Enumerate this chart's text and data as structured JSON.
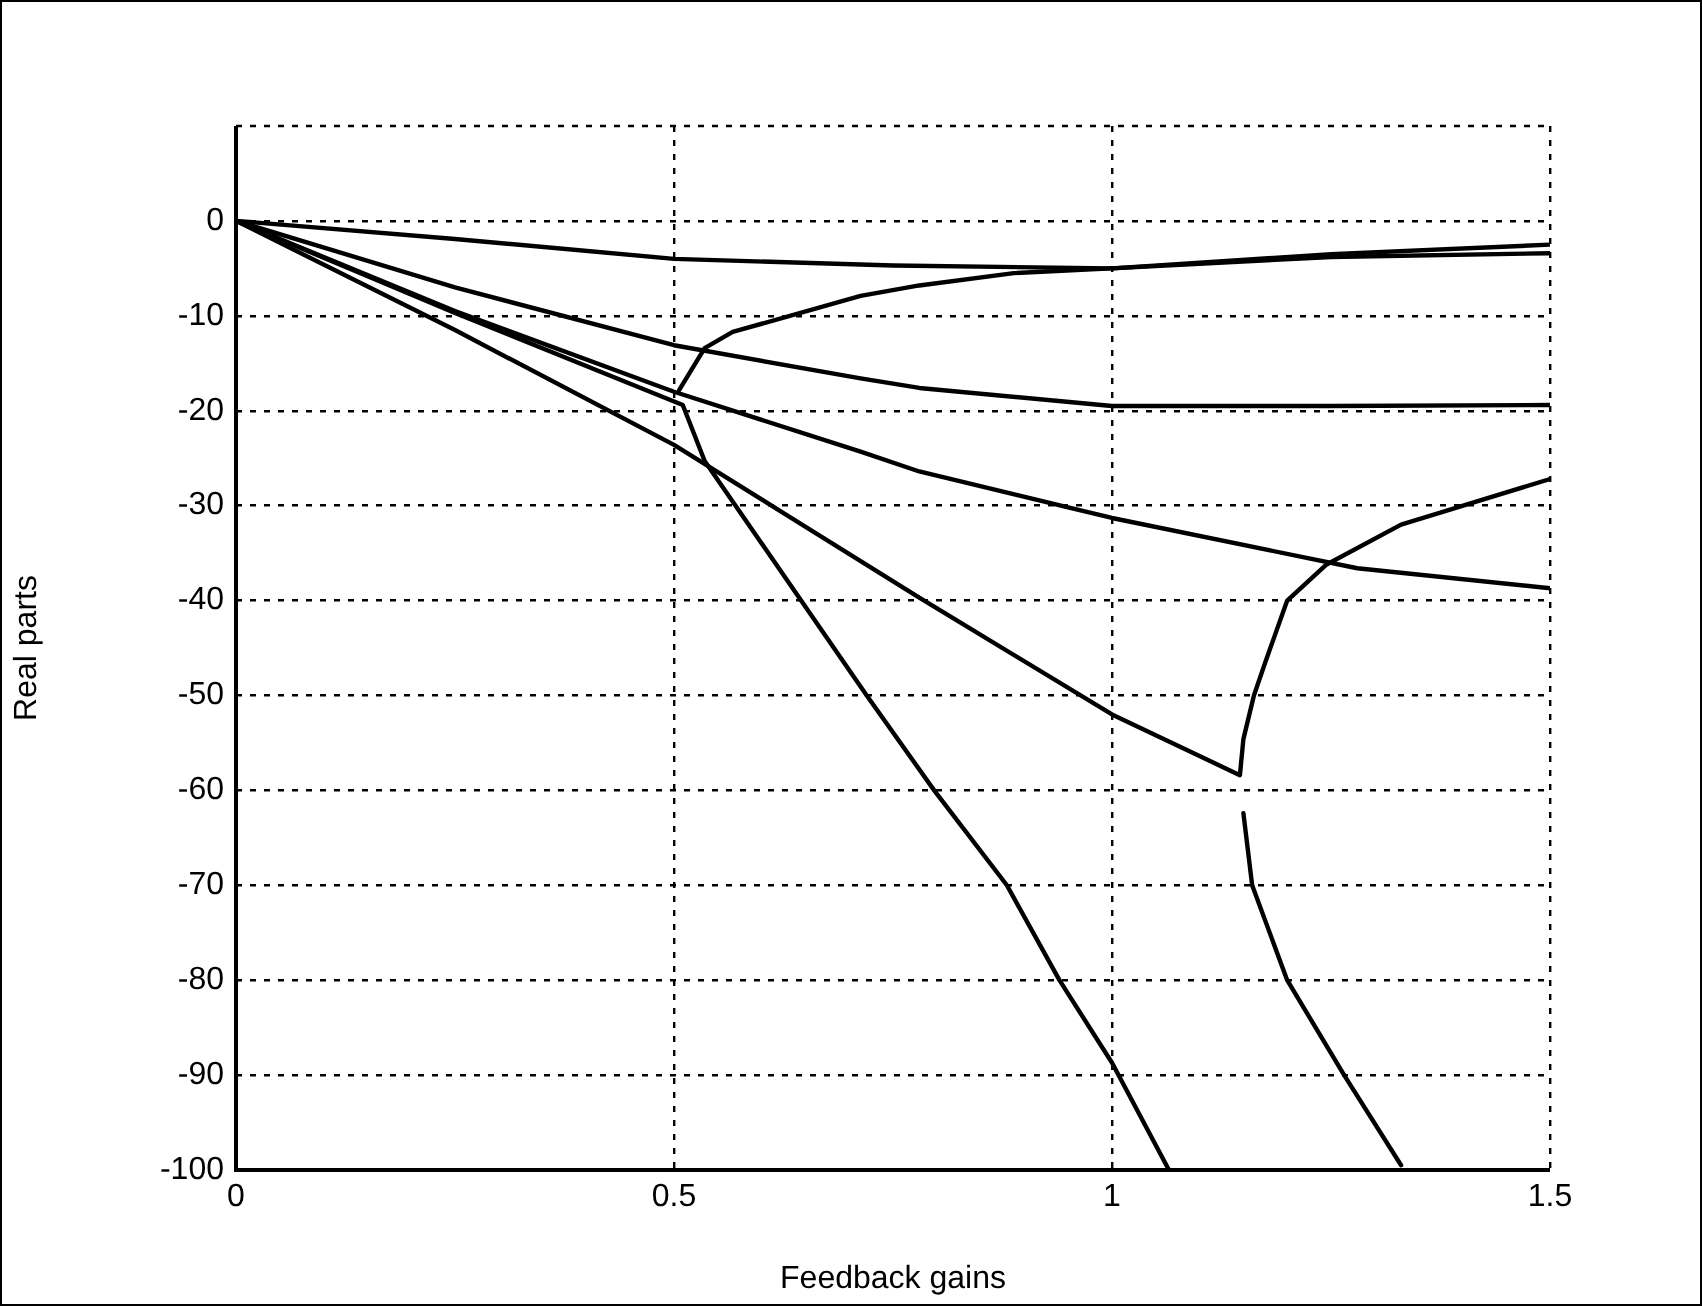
{
  "chart_data": {
    "type": "line",
    "xlabel": "Feedback gains",
    "ylabel": "Real parts",
    "xlim": [
      0,
      1.5
    ],
    "ylim": [
      -100,
      10
    ],
    "xticks": [
      0,
      0.5,
      1,
      1.5
    ],
    "yticks": [
      -100,
      -90,
      -80,
      -70,
      -60,
      -50,
      -40,
      -30,
      -20,
      -10,
      0
    ],
    "grid": true,
    "line_style": "solid",
    "marker": "none",
    "series": [
      {
        "color": "#000000",
        "x": [
          0,
          0.25,
          0.5,
          0.75,
          1,
          1.25,
          1.5
        ],
        "values": [
          0,
          -1.9,
          -4,
          -4.7,
          -5,
          -3.8,
          -3.4
        ]
      },
      {
        "color": "#000000",
        "x": [
          0,
          0.25,
          0.5,
          0.713,
          0.78,
          1,
          1.25,
          1.5
        ],
        "values": [
          0,
          -7,
          -13.1,
          -16.6,
          -17.6,
          -19.5,
          -19.5,
          -19.4
        ]
      },
      {
        "color": "#000000",
        "x": [
          0,
          0.25,
          0.5,
          0.713,
          0.78,
          1,
          1.28,
          1.5
        ],
        "values": [
          0,
          -9.5,
          -18,
          -24.3,
          -26.4,
          -31.3,
          -36.6,
          -38.7
        ]
      },
      {
        "color": "#000000",
        "x": [
          0,
          0.25,
          0.5,
          0.78,
          1,
          1.146,
          1.15,
          1.162,
          1.175,
          1.2,
          1.245,
          1.33,
          1.5
        ],
        "values": [
          0,
          -11.5,
          -23.6,
          -39.7,
          -52,
          -58.4,
          -54.6,
          -50,
          -46.5,
          -40,
          -36.2,
          -32,
          -27.2
        ]
      },
      {
        "color": "#000000",
        "x": [
          0,
          0.25,
          0.51,
          0.535,
          0.72,
          0.797,
          0.88,
          0.94,
          1,
          1.065
        ],
        "values": [
          0,
          -9.7,
          -19.4,
          -25.3,
          -50,
          -60,
          -70,
          -80,
          -88.7,
          -100
        ]
      },
      {
        "color": "#000000",
        "x": [
          0.506,
          0.535,
          0.567,
          0.713,
          0.78,
          0.888,
          1,
          1.25,
          1.5
        ],
        "values": [
          -17.8,
          -13.4,
          -11.7,
          -7.9,
          -6.8,
          -5.5,
          -5,
          -3.5,
          -2.5
        ]
      },
      {
        "color": "#000000",
        "x": [
          1.15,
          1.16,
          1.2,
          1.265,
          1.33
        ],
        "values": [
          -62.4,
          -70,
          -80,
          -90,
          -99.5
        ]
      }
    ]
  }
}
